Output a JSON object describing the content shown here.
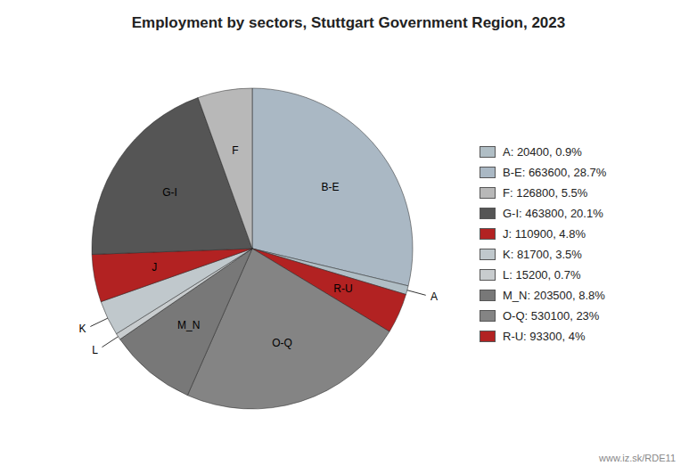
{
  "chart_data": {
    "type": "pie",
    "title": "Employment by sectors, Stuttgart Government Region, 2023",
    "categories": [
      "B-E",
      "A",
      "R-U",
      "O-Q",
      "M_N",
      "L",
      "K",
      "J",
      "G-I",
      "F"
    ],
    "values": [
      663600,
      20400,
      93300,
      530100,
      203500,
      15200,
      81700,
      110900,
      463800,
      126800
    ],
    "colors": [
      "#aab8c4",
      "#b0bec5",
      "#b22222",
      "#848484",
      "#787878",
      "#c8ccce",
      "#c0c8cc",
      "#b22222",
      "#555555",
      "#b8b8b8"
    ],
    "legend": "right",
    "legend_entries": [
      {
        "label": "A: 20400, 0.9%",
        "color": "#b0bec5"
      },
      {
        "label": "B-E: 663600, 28.7%",
        "color": "#aab8c4"
      },
      {
        "label": "F: 126800, 5.5%",
        "color": "#b8b8b8"
      },
      {
        "label": "G-I: 463800, 20.1%",
        "color": "#555555"
      },
      {
        "label": "J: 110900, 4.8%",
        "color": "#b22222"
      },
      {
        "label": "K: 81700, 3.5%",
        "color": "#c0c8cc"
      },
      {
        "label": "L: 15200, 0.7%",
        "color": "#c8ccce"
      },
      {
        "label": "M_N: 203500, 8.8%",
        "color": "#787878"
      },
      {
        "label": "O-Q: 530100, 23%",
        "color": "#848484"
      },
      {
        "label": "R-U: 93300, 4%",
        "color": "#b22222"
      }
    ],
    "annotations": [
      "www.iz.sk/RDE11"
    ]
  }
}
